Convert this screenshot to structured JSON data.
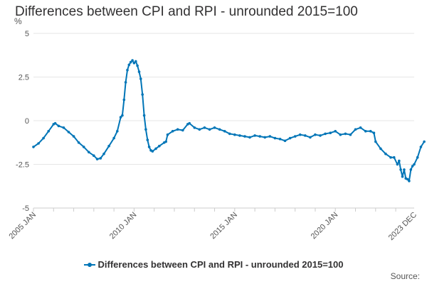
{
  "chart_data": {
    "type": "line",
    "title": "Differences between CPI and RPI - unrounded 2015=100",
    "ylabel": "%",
    "xlabel": "",
    "x_ticks": [
      "2005 JAN",
      "2010 JAN",
      "2015 JAN",
      "2020 JAN",
      "2023 DEC"
    ],
    "y_ticks": [
      "5",
      "2.5",
      "0",
      "-2.5",
      "-5"
    ],
    "ylim": [
      -5,
      5
    ],
    "xlim": [
      "2005-01",
      "2023-12"
    ],
    "grid": true,
    "legend_position": "bottom",
    "series": [
      {
        "name": "Differences between CPI and RPI - unrounded 2015=100",
        "color": "#0075b7",
        "points": [
          [
            "2005-01",
            -1.5
          ],
          [
            "2005-04",
            -1.3
          ],
          [
            "2005-07",
            -1.0
          ],
          [
            "2005-10",
            -0.6
          ],
          [
            "2006-01",
            -0.2
          ],
          [
            "2006-02",
            -0.15
          ],
          [
            "2006-04",
            -0.3
          ],
          [
            "2006-07",
            -0.4
          ],
          [
            "2006-10",
            -0.65
          ],
          [
            "2007-01",
            -0.9
          ],
          [
            "2007-04",
            -1.25
          ],
          [
            "2007-07",
            -1.5
          ],
          [
            "2007-10",
            -1.8
          ],
          [
            "2008-01",
            -2.0
          ],
          [
            "2008-03",
            -2.2
          ],
          [
            "2008-05",
            -2.15
          ],
          [
            "2008-07",
            -1.9
          ],
          [
            "2008-10",
            -1.45
          ],
          [
            "2009-01",
            -1.0
          ],
          [
            "2009-03",
            -0.6
          ],
          [
            "2009-05",
            0.2
          ],
          [
            "2009-06",
            0.3
          ],
          [
            "2009-07",
            1.2
          ],
          [
            "2009-08",
            2.2
          ],
          [
            "2009-09",
            2.9
          ],
          [
            "2009-10",
            3.2
          ],
          [
            "2009-11",
            3.35
          ],
          [
            "2009-12",
            3.45
          ],
          [
            "2010-01",
            3.3
          ],
          [
            "2010-02",
            3.4
          ],
          [
            "2010-03",
            3.15
          ],
          [
            "2010-04",
            2.8
          ],
          [
            "2010-05",
            2.4
          ],
          [
            "2010-06",
            1.5
          ],
          [
            "2010-07",
            0.3
          ],
          [
            "2010-08",
            -0.5
          ],
          [
            "2010-09",
            -1.1
          ],
          [
            "2010-10",
            -1.5
          ],
          [
            "2010-11",
            -1.7
          ],
          [
            "2010-12",
            -1.75
          ],
          [
            "2011-02",
            -1.6
          ],
          [
            "2011-04",
            -1.45
          ],
          [
            "2011-07",
            -1.25
          ],
          [
            "2011-08",
            -1.2
          ],
          [
            "2011-09",
            -0.8
          ],
          [
            "2011-12",
            -0.6
          ],
          [
            "2012-03",
            -0.5
          ],
          [
            "2012-06",
            -0.55
          ],
          [
            "2012-09",
            -0.2
          ],
          [
            "2012-10",
            -0.15
          ],
          [
            "2013-01",
            -0.4
          ],
          [
            "2013-04",
            -0.5
          ],
          [
            "2013-07",
            -0.4
          ],
          [
            "2013-10",
            -0.5
          ],
          [
            "2014-01",
            -0.4
          ],
          [
            "2014-04",
            -0.5
          ],
          [
            "2014-07",
            -0.6
          ],
          [
            "2014-10",
            -0.75
          ],
          [
            "2015-01",
            -0.8
          ],
          [
            "2015-04",
            -0.85
          ],
          [
            "2015-07",
            -0.9
          ],
          [
            "2015-10",
            -0.95
          ],
          [
            "2016-01",
            -0.85
          ],
          [
            "2016-04",
            -0.9
          ],
          [
            "2016-07",
            -0.95
          ],
          [
            "2016-10",
            -0.9
          ],
          [
            "2017-01",
            -1.0
          ],
          [
            "2017-04",
            -1.05
          ],
          [
            "2017-07",
            -1.15
          ],
          [
            "2017-10",
            -1.0
          ],
          [
            "2018-01",
            -0.9
          ],
          [
            "2018-04",
            -0.8
          ],
          [
            "2018-07",
            -0.85
          ],
          [
            "2018-10",
            -0.95
          ],
          [
            "2019-01",
            -0.8
          ],
          [
            "2019-04",
            -0.85
          ],
          [
            "2019-07",
            -0.75
          ],
          [
            "2019-10",
            -0.7
          ],
          [
            "2020-01",
            -0.6
          ],
          [
            "2020-04",
            -0.8
          ],
          [
            "2020-07",
            -0.75
          ],
          [
            "2020-10",
            -0.8
          ],
          [
            "2021-01",
            -0.5
          ],
          [
            "2021-04",
            -0.4
          ],
          [
            "2021-07",
            -0.6
          ],
          [
            "2021-10",
            -0.6
          ],
          [
            "2021-12",
            -0.7
          ],
          [
            "2022-01",
            -1.2
          ],
          [
            "2022-04",
            -1.6
          ],
          [
            "2022-07",
            -1.9
          ],
          [
            "2022-10",
            -2.1
          ],
          [
            "2022-12",
            -2.1
          ],
          [
            "2023-02",
            -2.5
          ],
          [
            "2023-03",
            -2.3
          ],
          [
            "2023-04",
            -2.8
          ],
          [
            "2023-05",
            -3.2
          ],
          [
            "2023-06",
            -2.8
          ],
          [
            "2023-07",
            -3.3
          ],
          [
            "2023-08",
            -3.35
          ],
          [
            "2023-09",
            -3.45
          ],
          [
            "2023-10",
            -2.8
          ],
          [
            "2023-11",
            -2.6
          ],
          [
            "2023-12",
            -2.5
          ],
          [
            "2024-02",
            -2.1
          ],
          [
            "2024-04",
            -1.5
          ],
          [
            "2024-06",
            -1.2
          ]
        ]
      }
    ]
  },
  "legend": {
    "label": "Differences between CPI and RPI - unrounded 2015=100",
    "color": "#0075b7"
  },
  "credits": "Source:"
}
